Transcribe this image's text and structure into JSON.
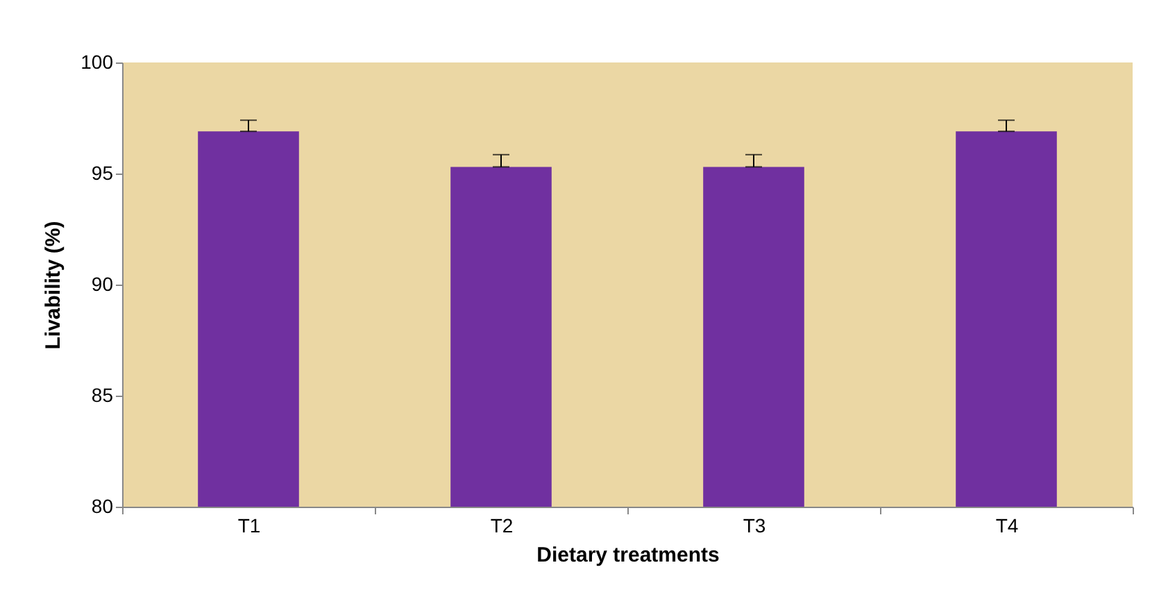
{
  "chart_data": {
    "type": "bar",
    "xlabel": "Dietary treatments",
    "ylabel": "Livability (%)",
    "categories": [
      "T1",
      "T2",
      "T3",
      "T4"
    ],
    "values": [
      96.9,
      95.3,
      95.3,
      96.9
    ],
    "errors": [
      [
        96.9,
        97.4
      ],
      [
        95.3,
        95.85
      ],
      [
        95.3,
        95.85
      ],
      [
        96.9,
        97.4
      ]
    ],
    "color": "#7030a0",
    "ylim": [
      80,
      100
    ],
    "yticks": [
      80,
      85,
      90,
      95,
      100
    ],
    "grid": false
  }
}
